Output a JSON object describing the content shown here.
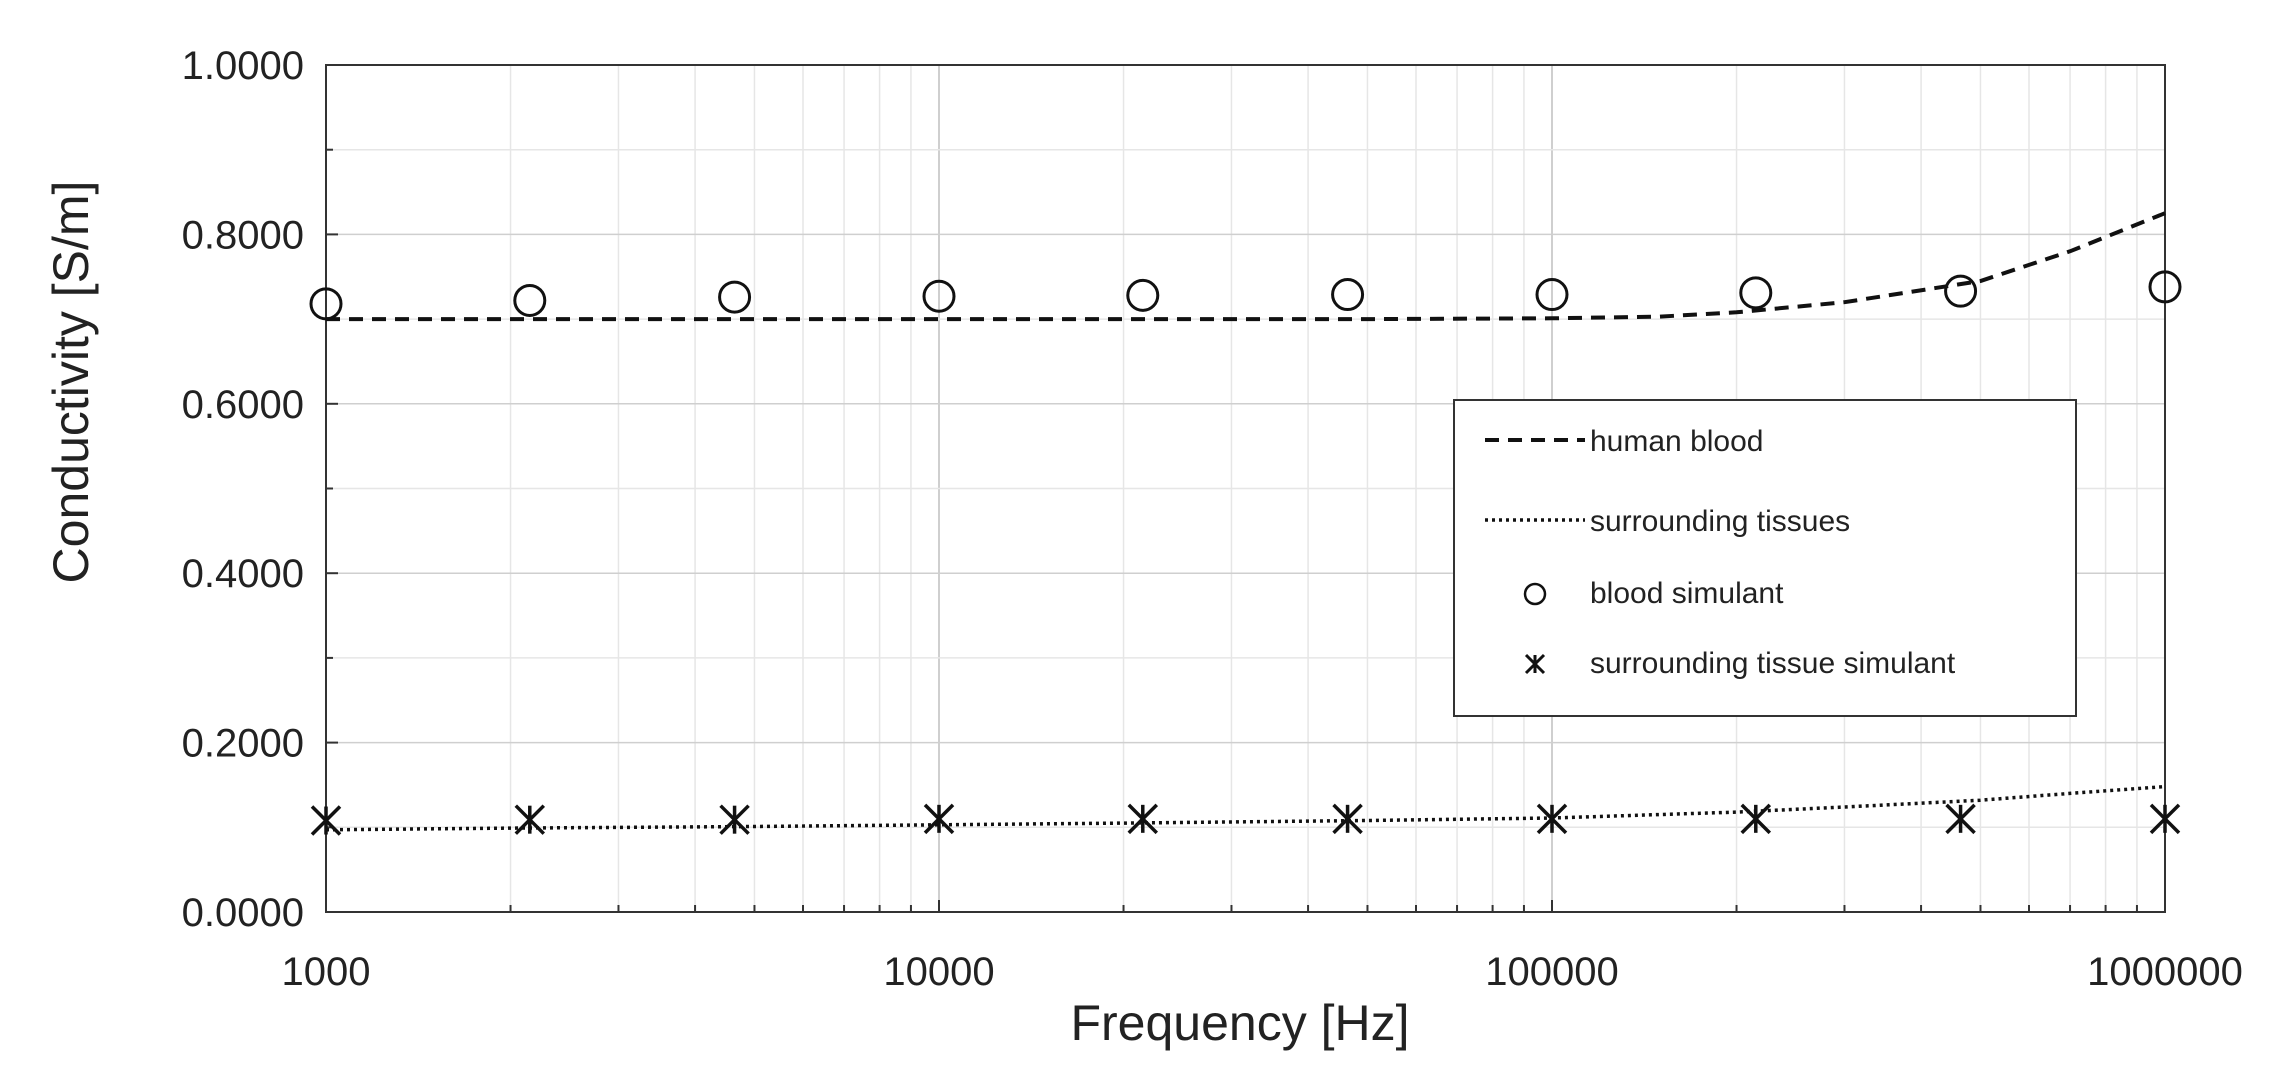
{
  "chart_data": {
    "type": "line",
    "xlabel": "Frequency [Hz]",
    "ylabel": "Conductivity [S/m]",
    "xscale": "log",
    "xlim": [
      1000,
      1000000
    ],
    "ylim": [
      0,
      1
    ],
    "x_ticks": [
      1000,
      10000,
      100000,
      1000000
    ],
    "x_tick_labels": [
      "1000",
      "10000",
      "100000",
      "1000000"
    ],
    "y_ticks": [
      0,
      0.2,
      0.4,
      0.6,
      0.8,
      1.0
    ],
    "y_tick_labels": [
      "0.0000",
      "0.2000",
      "0.4000",
      "0.6000",
      "0.8000",
      "1.0000"
    ],
    "grid": true,
    "legend_position": "center-right",
    "series": [
      {
        "name": "human blood",
        "style": "dashed",
        "color": "#111111",
        "x": [
          1000,
          2000,
          5000,
          10000,
          20000,
          50000,
          100000,
          150000,
          200000,
          300000,
          500000,
          700000,
          1000000
        ],
        "y": [
          0.7,
          0.7,
          0.7,
          0.7,
          0.7,
          0.7,
          0.701,
          0.703,
          0.708,
          0.72,
          0.745,
          0.78,
          0.825
        ]
      },
      {
        "name": "surrounding tissues",
        "style": "dotted",
        "color": "#111111",
        "x": [
          1000,
          2000,
          5000,
          10000,
          20000,
          50000,
          100000,
          200000,
          300000,
          500000,
          700000,
          1000000
        ],
        "y": [
          0.097,
          0.099,
          0.101,
          0.103,
          0.105,
          0.108,
          0.111,
          0.118,
          0.124,
          0.132,
          0.14,
          0.148
        ]
      },
      {
        "name": "blood simulant",
        "style": "circle",
        "color": "#111111",
        "x": [
          1000,
          2150,
          4640,
          10000,
          21500,
          46400,
          100000,
          215000,
          464000,
          1000000
        ],
        "y": [
          0.718,
          0.722,
          0.726,
          0.727,
          0.728,
          0.729,
          0.729,
          0.731,
          0.733,
          0.738
        ]
      },
      {
        "name": "surrounding tissue simulant",
        "style": "asterisk",
        "color": "#111111",
        "x": [
          1000,
          2150,
          4640,
          10000,
          21500,
          46400,
          100000,
          215000,
          464000,
          1000000
        ],
        "y": [
          0.108,
          0.109,
          0.109,
          0.11,
          0.11,
          0.11,
          0.11,
          0.11,
          0.11,
          0.11
        ]
      }
    ]
  }
}
